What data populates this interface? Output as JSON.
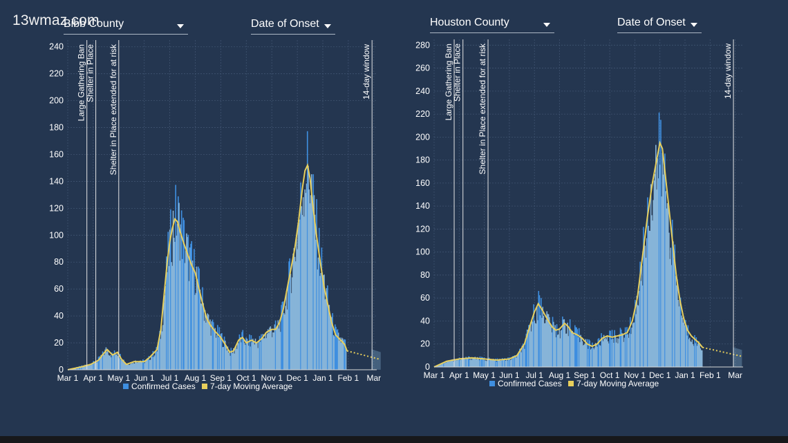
{
  "watermark": "13wmaz.com",
  "colors": {
    "background": "#243650",
    "bars": "#87b4d8",
    "bar_spikes": "#3f8fe0",
    "moving_average": "#e8cf5c",
    "grid": "#3f5370",
    "annotation_line": "#e6e6e6"
  },
  "panels": [
    {
      "county_selector": "Bibb County",
      "date_selector": "Date of Onset",
      "legend": {
        "cases": "Confirmed Cases",
        "average": "7-day Moving Average"
      }
    },
    {
      "county_selector": "Houston County",
      "date_selector": "Date of Onset",
      "legend": {
        "cases": "Confirmed Cases",
        "average": "7-day Moving Average"
      }
    }
  ],
  "chart_data": [
    {
      "type": "bar",
      "title": "Bibb County",
      "xlabel": "",
      "ylabel": "",
      "ylim": [
        0,
        245
      ],
      "yticks": [
        "0",
        "20",
        "40",
        "60",
        "80",
        "100",
        "120",
        "140",
        "160",
        "180",
        "200",
        "220",
        "240"
      ],
      "ytick_values": [
        0,
        20,
        40,
        60,
        80,
        100,
        120,
        140,
        160,
        180,
        200,
        220,
        240
      ],
      "xticks": [
        "Mar 1",
        "Apr 1",
        "May 1",
        "Jun 1",
        "Jul 1",
        "Aug 1",
        "Sep 1",
        "Oct 1",
        "Nov 1",
        "Dec 1",
        "Jan 1",
        "Feb 1",
        "Mar"
      ],
      "annotations": [
        {
          "label": "Large Gathering Ban",
          "month": 0.75
        },
        {
          "label": "Shelter in Place",
          "month": 1.1
        },
        {
          "label": "Shelter in Place extended for at risk",
          "month": 2.0
        },
        {
          "label": "14-day window",
          "month": 11.93
        }
      ],
      "series": [
        {
          "name": "Confirmed Cases",
          "month_points": [
            [
              0,
              0
            ],
            [
              0.4,
              2
            ],
            [
              0.8,
              4
            ],
            [
              1.1,
              6
            ],
            [
              1.3,
              10
            ],
            [
              1.5,
              15
            ],
            [
              1.7,
              11
            ],
            [
              1.9,
              13
            ],
            [
              2.05,
              10
            ],
            [
              2.3,
              4
            ],
            [
              2.6,
              6
            ],
            [
              2.8,
              7
            ],
            [
              3.0,
              6
            ],
            [
              3.2,
              9
            ],
            [
              3.5,
              15
            ],
            [
              3.65,
              30
            ],
            [
              3.8,
              60
            ],
            [
              3.9,
              80
            ],
            [
              4.0,
              95
            ],
            [
              4.1,
              105
            ],
            [
              4.2,
              113
            ],
            [
              4.3,
              112
            ],
            [
              4.4,
              105
            ],
            [
              4.55,
              95
            ],
            [
              4.7,
              85
            ],
            [
              4.85,
              78
            ],
            [
              5.0,
              72
            ],
            [
              5.15,
              60
            ],
            [
              5.3,
              48
            ],
            [
              5.45,
              38
            ],
            [
              5.6,
              33
            ],
            [
              5.8,
              28
            ],
            [
              6.0,
              24
            ],
            [
              6.2,
              18
            ],
            [
              6.35,
              13
            ],
            [
              6.5,
              14
            ],
            [
              6.7,
              22
            ],
            [
              6.85,
              24
            ],
            [
              7.0,
              20
            ],
            [
              7.2,
              22
            ],
            [
              7.4,
              20
            ],
            [
              7.6,
              23
            ],
            [
              7.8,
              28
            ],
            [
              8.0,
              30
            ],
            [
              8.15,
              30
            ],
            [
              8.3,
              35
            ],
            [
              8.45,
              45
            ],
            [
              8.6,
              60
            ],
            [
              8.75,
              75
            ],
            [
              8.9,
              90
            ],
            [
              9.05,
              110
            ],
            [
              9.2,
              135
            ],
            [
              9.3,
              148
            ],
            [
              9.4,
              150
            ],
            [
              9.5,
              140
            ],
            [
              9.6,
              122
            ],
            [
              9.75,
              100
            ],
            [
              9.9,
              80
            ],
            [
              10.05,
              62
            ],
            [
              10.2,
              48
            ],
            [
              10.35,
              35
            ],
            [
              10.5,
              26
            ],
            [
              10.7,
              22
            ],
            [
              10.85,
              19
            ],
            [
              10.95,
              15
            ]
          ]
        },
        {
          "name": "7-day Moving Average",
          "month_points": [
            [
              0,
              0
            ],
            [
              0.5,
              2
            ],
            [
              0.9,
              4
            ],
            [
              1.2,
              7
            ],
            [
              1.4,
              12
            ],
            [
              1.55,
              15
            ],
            [
              1.75,
              11
            ],
            [
              1.95,
              13
            ],
            [
              2.1,
              8
            ],
            [
              2.3,
              4
            ],
            [
              2.6,
              6
            ],
            [
              2.8,
              6
            ],
            [
              3.0,
              6
            ],
            [
              3.2,
              9
            ],
            [
              3.5,
              15
            ],
            [
              3.65,
              30
            ],
            [
              3.8,
              60
            ],
            [
              3.9,
              80
            ],
            [
              4.0,
              95
            ],
            [
              4.1,
              105
            ],
            [
              4.2,
              112
            ],
            [
              4.3,
              110
            ],
            [
              4.4,
              103
            ],
            [
              4.55,
              94
            ],
            [
              4.7,
              86
            ],
            [
              4.85,
              78
            ],
            [
              5.0,
              72
            ],
            [
              5.15,
              60
            ],
            [
              5.3,
              48
            ],
            [
              5.45,
              38
            ],
            [
              5.6,
              33
            ],
            [
              5.8,
              28
            ],
            [
              6.0,
              24
            ],
            [
              6.2,
              18
            ],
            [
              6.35,
              13
            ],
            [
              6.5,
              14
            ],
            [
              6.7,
              22
            ],
            [
              6.85,
              24
            ],
            [
              7.0,
              20
            ],
            [
              7.2,
              22
            ],
            [
              7.4,
              20
            ],
            [
              7.6,
              23
            ],
            [
              7.8,
              28
            ],
            [
              8.0,
              30
            ],
            [
              8.15,
              30
            ],
            [
              8.3,
              35
            ],
            [
              8.45,
              45
            ],
            [
              8.6,
              60
            ],
            [
              8.75,
              75
            ],
            [
              8.9,
              90
            ],
            [
              9.05,
              110
            ],
            [
              9.2,
              135
            ],
            [
              9.3,
              148
            ],
            [
              9.4,
              152
            ],
            [
              9.5,
              142
            ],
            [
              9.6,
              124
            ],
            [
              9.75,
              100
            ],
            [
              9.9,
              80
            ],
            [
              10.05,
              62
            ],
            [
              10.2,
              48
            ],
            [
              10.35,
              35
            ],
            [
              10.5,
              26
            ],
            [
              10.7,
              22
            ],
            [
              10.85,
              19
            ],
            [
              10.95,
              14
            ]
          ]
        }
      ]
    },
    {
      "type": "bar",
      "title": "Houston County",
      "xlabel": "",
      "ylabel": "",
      "ylim": [
        0,
        285
      ],
      "yticks": [
        "0",
        "20",
        "40",
        "60",
        "80",
        "100",
        "120",
        "140",
        "160",
        "180",
        "200",
        "220",
        "240",
        "260",
        "280"
      ],
      "ytick_values": [
        0,
        20,
        40,
        60,
        80,
        100,
        120,
        140,
        160,
        180,
        200,
        220,
        240,
        260,
        280
      ],
      "xticks": [
        "Mar 1",
        "Apr 1",
        "May 1",
        "Jun 1",
        "Jul 1",
        "Aug 1",
        "Sep 1",
        "Oct 1",
        "Nov 1",
        "Dec 1",
        "Jan 1",
        "Feb 1",
        "Mar"
      ],
      "annotations": [
        {
          "label": "Large Gathering Ban",
          "month": 0.8
        },
        {
          "label": "Shelter in Place",
          "month": 1.15
        },
        {
          "label": "Shelter in Place extended for at risk",
          "month": 2.15
        },
        {
          "label": "14-day window",
          "month": 11.93
        }
      ],
      "series": [
        {
          "name": "Confirmed Cases",
          "month_points": [
            [
              0,
              0
            ],
            [
              0.5,
              5
            ],
            [
              1.0,
              7
            ],
            [
              1.5,
              8
            ],
            [
              2.0,
              7
            ],
            [
              2.5,
              6
            ],
            [
              3.0,
              7
            ],
            [
              3.3,
              10
            ],
            [
              3.6,
              20
            ],
            [
              3.85,
              38
            ],
            [
              4.0,
              48
            ],
            [
              4.15,
              55
            ],
            [
              4.3,
              50
            ],
            [
              4.5,
              42
            ],
            [
              4.7,
              35
            ],
            [
              4.85,
              32
            ],
            [
              5.0,
              33
            ],
            [
              5.2,
              38
            ],
            [
              5.35,
              35
            ],
            [
              5.5,
              30
            ],
            [
              5.7,
              28
            ],
            [
              5.9,
              25
            ],
            [
              6.1,
              20
            ],
            [
              6.3,
              18
            ],
            [
              6.5,
              20
            ],
            [
              6.7,
              25
            ],
            [
              6.9,
              27
            ],
            [
              7.1,
              26
            ],
            [
              7.3,
              27
            ],
            [
              7.5,
              28
            ],
            [
              7.7,
              30
            ],
            [
              7.9,
              40
            ],
            [
              8.1,
              60
            ],
            [
              8.3,
              95
            ],
            [
              8.5,
              130
            ],
            [
              8.7,
              160
            ],
            [
              8.85,
              175
            ],
            [
              9.0,
              180
            ],
            [
              9.15,
              165
            ],
            [
              9.3,
              140
            ],
            [
              9.45,
              110
            ],
            [
              9.6,
              80
            ],
            [
              9.75,
              58
            ],
            [
              9.9,
              42
            ],
            [
              10.05,
              32
            ],
            [
              10.2,
              27
            ],
            [
              10.35,
              24
            ],
            [
              10.5,
              20
            ],
            [
              10.7,
              17
            ]
          ]
        },
        {
          "name": "7-day Moving Average",
          "month_points": [
            [
              0,
              0
            ],
            [
              0.5,
              5
            ],
            [
              1.0,
              7
            ],
            [
              1.5,
              8
            ],
            [
              2.0,
              7
            ],
            [
              2.5,
              6
            ],
            [
              3.0,
              7
            ],
            [
              3.3,
              10
            ],
            [
              3.6,
              20
            ],
            [
              3.85,
              38
            ],
            [
              4.0,
              48
            ],
            [
              4.15,
              55
            ],
            [
              4.3,
              50
            ],
            [
              4.5,
              42
            ],
            [
              4.7,
              35
            ],
            [
              4.85,
              32
            ],
            [
              5.0,
              33
            ],
            [
              5.2,
              38
            ],
            [
              5.35,
              35
            ],
            [
              5.5,
              30
            ],
            [
              5.7,
              28
            ],
            [
              5.9,
              25
            ],
            [
              6.1,
              20
            ],
            [
              6.3,
              18
            ],
            [
              6.5,
              20
            ],
            [
              6.7,
              25
            ],
            [
              6.9,
              27
            ],
            [
              7.1,
              26
            ],
            [
              7.3,
              27
            ],
            [
              7.5,
              28
            ],
            [
              7.7,
              30
            ],
            [
              7.9,
              40
            ],
            [
              8.1,
              60
            ],
            [
              8.3,
              95
            ],
            [
              8.5,
              130
            ],
            [
              8.7,
              160
            ],
            [
              8.85,
              178
            ],
            [
              9.0,
              195
            ],
            [
              9.1,
              190
            ],
            [
              9.2,
              170
            ],
            [
              9.35,
              140
            ],
            [
              9.5,
              110
            ],
            [
              9.65,
              80
            ],
            [
              9.8,
              58
            ],
            [
              9.95,
              42
            ],
            [
              10.1,
              32
            ],
            [
              10.25,
              27
            ],
            [
              10.4,
              24
            ],
            [
              10.55,
              21
            ],
            [
              10.7,
              17
            ]
          ]
        }
      ]
    }
  ]
}
